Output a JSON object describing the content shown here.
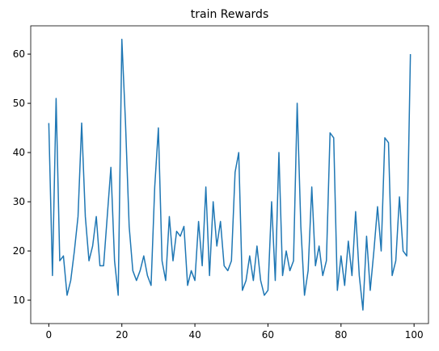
{
  "chart_data": {
    "type": "line",
    "title": "train Rewards",
    "x": [
      0,
      1,
      2,
      3,
      4,
      5,
      6,
      7,
      8,
      9,
      10,
      11,
      12,
      13,
      14,
      15,
      16,
      17,
      18,
      19,
      20,
      21,
      22,
      23,
      24,
      25,
      26,
      27,
      28,
      29,
      30,
      31,
      32,
      33,
      34,
      35,
      36,
      37,
      38,
      39,
      40,
      41,
      42,
      43,
      44,
      45,
      46,
      47,
      48,
      49,
      50,
      51,
      52,
      53,
      54,
      55,
      56,
      57,
      58,
      59,
      60,
      61,
      62,
      63,
      64,
      65,
      66,
      67,
      68,
      69,
      70,
      71,
      72,
      73,
      74,
      75,
      76,
      77,
      78,
      79,
      80,
      81,
      82,
      83,
      84,
      85,
      86,
      87,
      88,
      89,
      90,
      91,
      92,
      93,
      94,
      95,
      96,
      97,
      98,
      99
    ],
    "series": [
      {
        "color": "#1f77b4",
        "values": [
          46,
          15,
          51,
          18,
          19,
          11,
          14,
          20,
          27,
          46,
          27,
          18,
          21,
          27,
          17,
          17,
          27,
          37,
          18,
          11,
          63,
          46,
          25,
          16,
          14,
          16,
          19,
          15,
          13,
          33,
          45,
          18,
          14,
          27,
          18,
          24,
          23,
          25,
          13,
          16,
          14,
          26,
          17,
          33,
          15,
          30,
          21,
          26,
          17,
          16,
          18,
          36,
          40,
          12,
          14,
          19,
          14,
          21,
          14,
          11,
          12,
          30,
          14,
          40,
          15,
          20,
          16,
          18,
          50,
          25,
          11,
          16,
          33,
          17,
          21,
          15,
          18,
          44,
          43,
          12,
          19,
          13,
          22,
          15,
          28,
          15,
          8,
          23,
          12,
          20,
          29,
          20,
          43,
          42,
          15,
          18,
          31,
          20,
          19,
          60
        ]
      }
    ],
    "xlim": [
      -4.95,
      103.95
    ],
    "ylim": [
      5.25,
      65.75
    ],
    "xticks": [
      0,
      20,
      40,
      60,
      80,
      100
    ],
    "yticks": [
      10,
      20,
      30,
      40,
      50,
      60
    ]
  }
}
